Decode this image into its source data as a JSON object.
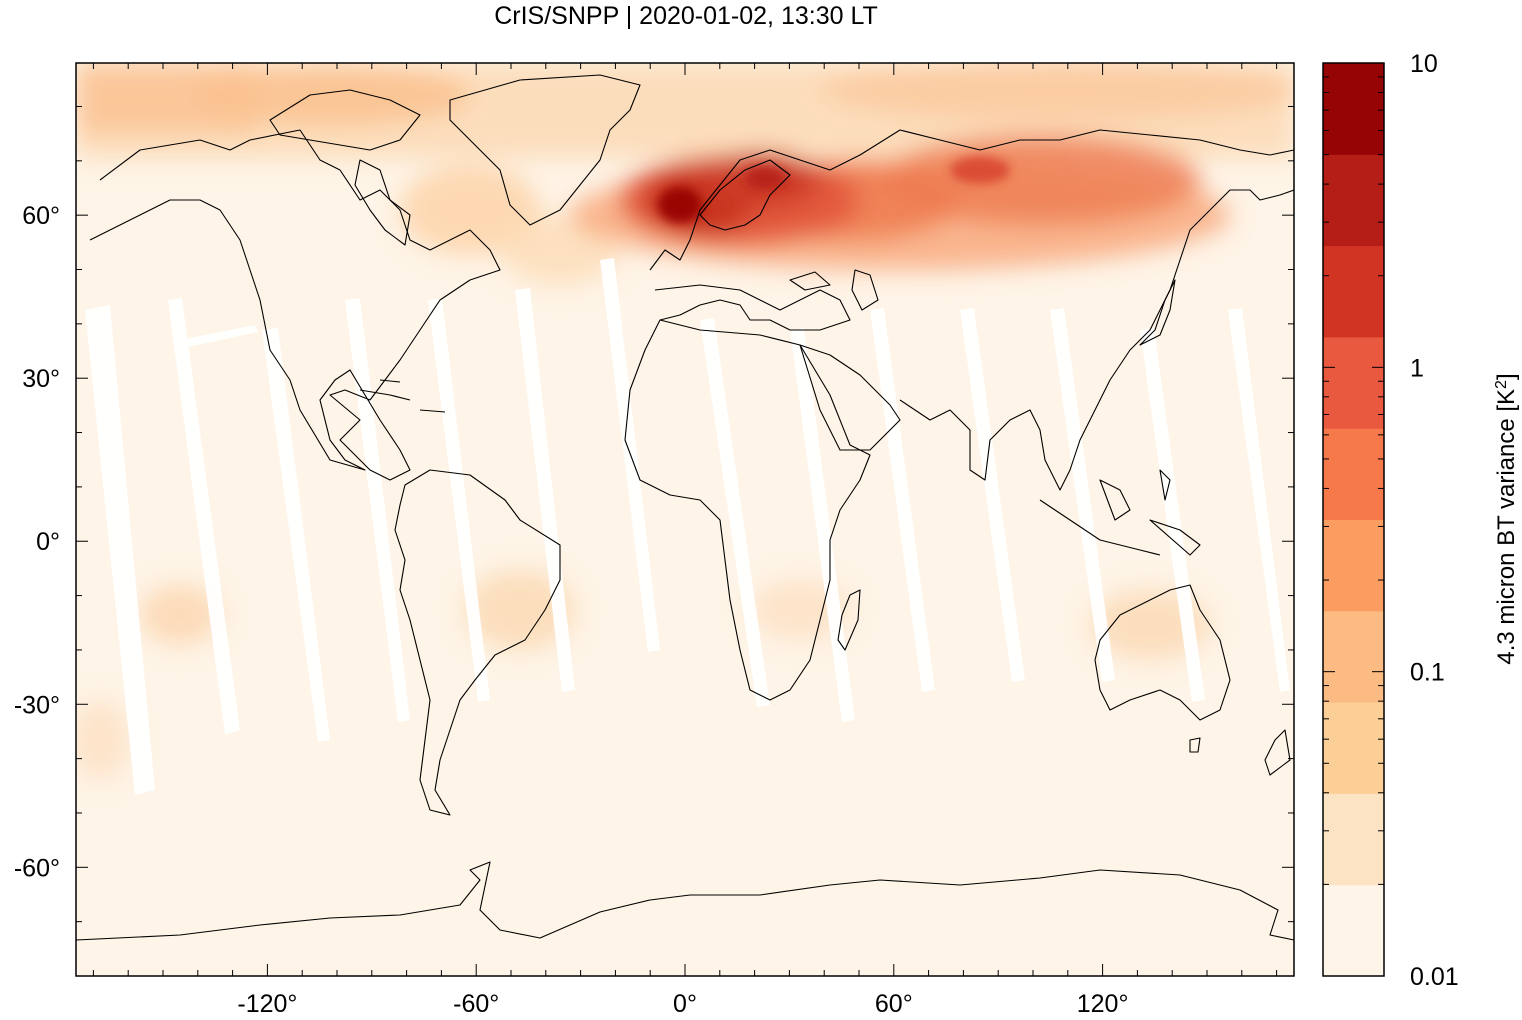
{
  "title": "CrIS/SNPP | 2020-01-02, 13:30 LT",
  "map": {
    "projection": "equirectangular",
    "lon_range": [
      -175,
      175
    ],
    "lat_range": [
      -80,
      88
    ],
    "x_ticks": [
      {
        "value": -120,
        "label": "-120°"
      },
      {
        "value": -60,
        "label": "-60°"
      },
      {
        "value": 0,
        "label": "0°"
      },
      {
        "value": 60,
        "label": "60°"
      },
      {
        "value": 120,
        "label": "120°"
      }
    ],
    "y_ticks": [
      {
        "value": 60,
        "label": "60°"
      },
      {
        "value": 30,
        "label": "30°"
      },
      {
        "value": 0,
        "label": "0°"
      },
      {
        "value": -30,
        "label": "-30°"
      },
      {
        "value": -60,
        "label": "-60°"
      }
    ],
    "background_color": "#fef4e7",
    "coastline_color": "#000000",
    "swath_gap_color": "#ffffff"
  },
  "colorbar": {
    "label_prefix": "4.3 micron BT variance [K",
    "label_sup": "2",
    "label_suffix": "]",
    "scale": "log",
    "range": [
      0.01,
      10
    ],
    "tick_labels": [
      {
        "value": 10,
        "label": "10"
      },
      {
        "value": 1,
        "label": "1"
      },
      {
        "value": 0.1,
        "label": "0.1"
      },
      {
        "value": 0.01,
        "label": "0.01"
      }
    ],
    "levels": [
      {
        "lower": 0.01,
        "color": "#fef4e7"
      },
      {
        "lower": 0.02,
        "color": "#fbe3c3"
      },
      {
        "lower": 0.04,
        "color": "#fccf96"
      },
      {
        "lower": 0.08,
        "color": "#fcbb82"
      },
      {
        "lower": 0.16,
        "color": "#fb9c61"
      },
      {
        "lower": 0.32,
        "color": "#f5794b"
      },
      {
        "lower": 0.64,
        "color": "#e9593f"
      },
      {
        "lower": 1.28,
        "color": "#d13423"
      },
      {
        "lower": 2.56,
        "color": "#b51d17"
      },
      {
        "lower": 5.12,
        "color": "#950505"
      }
    ]
  }
}
